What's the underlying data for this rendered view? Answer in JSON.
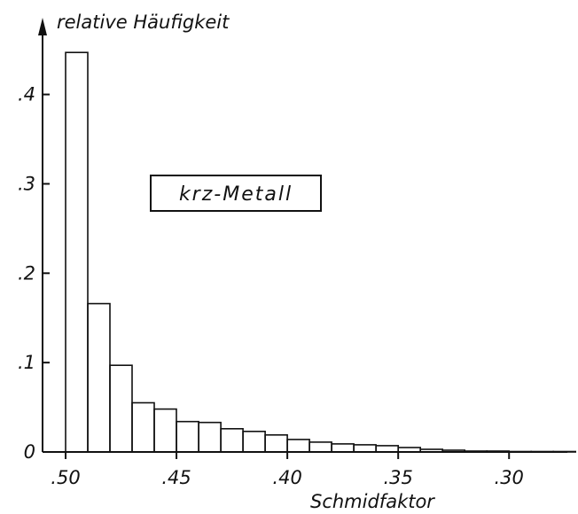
{
  "chart_data": {
    "type": "bar",
    "title": "",
    "xlabel": "Schmidfaktor",
    "ylabel": "relative Häufigkeit",
    "annotation": "krz-Metall",
    "x_reversed": true,
    "xlim": [
      0.5,
      0.2737
    ],
    "ylim": [
      0,
      0.47
    ],
    "bin_width": 0.01,
    "bin_left_edges": [
      0.5,
      0.49,
      0.48,
      0.47,
      0.46,
      0.45,
      0.44,
      0.43,
      0.42,
      0.41,
      0.4,
      0.39,
      0.38,
      0.37,
      0.36,
      0.35,
      0.34,
      0.33,
      0.32,
      0.31,
      0.3,
      0.29,
      0.28
    ],
    "values": [
      0.447,
      0.166,
      0.097,
      0.055,
      0.048,
      0.034,
      0.033,
      0.026,
      0.023,
      0.019,
      0.014,
      0.011,
      0.009,
      0.008,
      0.007,
      0.005,
      0.003,
      0.002,
      0.001,
      0.001,
      0.0005,
      0.0005,
      0.0005
    ],
    "x_ticks": [
      0.5,
      0.45,
      0.4,
      0.35,
      0.3
    ],
    "x_tick_labels": [
      ".50",
      ".45",
      ".40",
      ".35",
      ".30"
    ],
    "y_ticks": [
      0,
      0.1,
      0.2,
      0.3,
      0.4
    ],
    "y_tick_labels": [
      "0",
      ".1",
      ".2",
      ".3",
      ".4"
    ],
    "grid": false,
    "legend": "none"
  }
}
